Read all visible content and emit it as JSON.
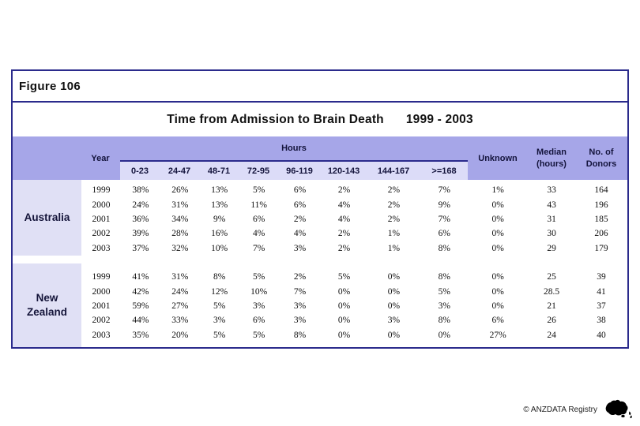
{
  "figure": {
    "label": "Figure 106"
  },
  "title": {
    "main": "Time from Admission to Brain Death",
    "range": "1999 - 2003"
  },
  "table": {
    "year_header": "Year",
    "hours_header": "Hours",
    "hour_columns": [
      "0-23",
      "24-47",
      "48-71",
      "72-95",
      "96-119",
      "120-143",
      "144-167",
      ">=168"
    ],
    "unknown_header": "Unknown",
    "median_header_line1": "Median",
    "median_header_line2": "(hours)",
    "donors_header_line1": "No. of",
    "donors_header_line2": "Donors",
    "groups": [
      {
        "label": "Australia",
        "rows": [
          {
            "year": "1999",
            "values": [
              "38%",
              "26%",
              "13%",
              "5%",
              "6%",
              "2%",
              "2%",
              "7%",
              "1%",
              "33",
              "164"
            ]
          },
          {
            "year": "2000",
            "values": [
              "24%",
              "31%",
              "13%",
              "11%",
              "6%",
              "4%",
              "2%",
              "9%",
              "0%",
              "43",
              "196"
            ]
          },
          {
            "year": "2001",
            "values": [
              "36%",
              "34%",
              "9%",
              "6%",
              "2%",
              "4%",
              "2%",
              "7%",
              "0%",
              "31",
              "185"
            ]
          },
          {
            "year": "2002",
            "values": [
              "39%",
              "28%",
              "16%",
              "4%",
              "4%",
              "2%",
              "1%",
              "6%",
              "0%",
              "30",
              "206"
            ]
          },
          {
            "year": "2003",
            "values": [
              "37%",
              "32%",
              "10%",
              "7%",
              "3%",
              "2%",
              "1%",
              "8%",
              "0%",
              "29",
              "179"
            ]
          }
        ]
      },
      {
        "label": "New Zealand",
        "rows": [
          {
            "year": "1999",
            "values": [
              "41%",
              "31%",
              "8%",
              "5%",
              "2%",
              "5%",
              "0%",
              "8%",
              "0%",
              "25",
              "39"
            ]
          },
          {
            "year": "2000",
            "values": [
              "42%",
              "24%",
              "12%",
              "10%",
              "7%",
              "0%",
              "0%",
              "5%",
              "0%",
              "28.5",
              "41"
            ]
          },
          {
            "year": "2001",
            "values": [
              "59%",
              "27%",
              "5%",
              "3%",
              "3%",
              "0%",
              "0%",
              "3%",
              "0%",
              "21",
              "37"
            ]
          },
          {
            "year": "2002",
            "values": [
              "44%",
              "33%",
              "3%",
              "6%",
              "3%",
              "0%",
              "3%",
              "8%",
              "6%",
              "26",
              "38"
            ]
          },
          {
            "year": "2003",
            "values": [
              "35%",
              "20%",
              "5%",
              "5%",
              "8%",
              "0%",
              "0%",
              "0%",
              "27%",
              "24",
              "40"
            ]
          }
        ]
      }
    ]
  },
  "footer": {
    "credit": "© ANZDATA Registry",
    "logo": "australia-nz-map-icon"
  },
  "colors": {
    "border_navy": "#2b2b8c",
    "header_band": "#a6a6e8",
    "subheader_strip": "#dcdcf8",
    "group_label_block": "#e0e0f5",
    "header_text": "#14143c"
  }
}
